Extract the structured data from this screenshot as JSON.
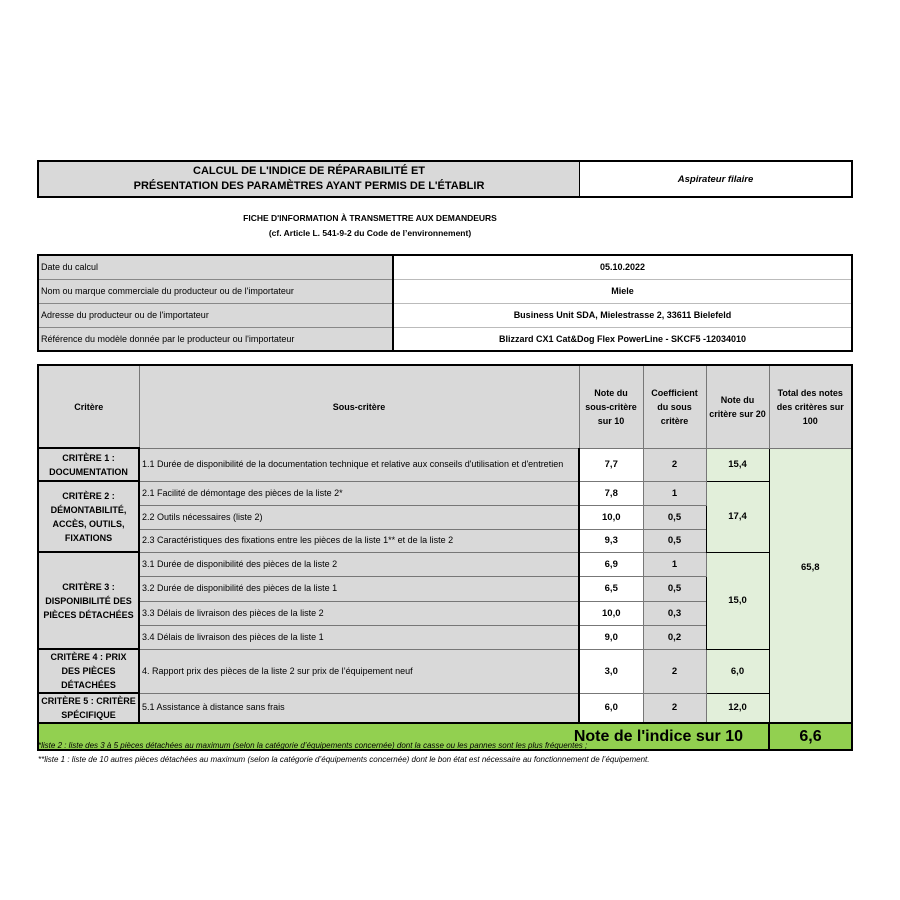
{
  "title": {
    "line1": "CALCUL DE L'INDICE DE RÉPARABILITÉ ET",
    "line2": "PRÉSENTATION DES PARAMÈTRES AYANT PERMIS DE L'ÉTABLIR",
    "category": "Aspirateur filaire"
  },
  "subtitle": {
    "line1": "FICHE D'INFORMATION À TRANSMETTRE AUX DEMANDEURS",
    "line2": "(cf. Article L. 541-9-2 du Code de l’environnement)"
  },
  "info": [
    {
      "label": "Date du calcul",
      "value": "05.10.2022"
    },
    {
      "label": "Nom ou marque commerciale du producteur ou de l'importateur",
      "value": "Miele"
    },
    {
      "label": "Adresse du producteur ou de l'importateur",
      "value": "Business Unit SDA, Mielestrasse 2, 33611 Bielefeld"
    },
    {
      "label": "Référence du modèle donnée par le producteur ou l'importateur",
      "value": "Blizzard CX1 Cat&Dog Flex PowerLine - SKCF5 -12034010"
    }
  ],
  "headers": {
    "critere": "Critère",
    "sous_critere": "Sous-critère",
    "note_sous": "Note du sous-critère sur 10",
    "coef": "Coefficient du sous critère",
    "note_crit": "Note du critère sur 20",
    "total": "Total des notes des critères sur 100"
  },
  "criteria": [
    {
      "name": "CRITÈRE 1 : DOCUMENTATION",
      "score": "15,4",
      "subs": [
        {
          "label": "1.1 Durée de disponibilité de la documentation technique et relative aux conseils d'utilisation et d'entretien",
          "note": "7,7",
          "coef": "2"
        }
      ]
    },
    {
      "name": "CRITÈRE 2 : DÉMONTABILITÉ, ACCÈS, OUTILS, FIXATIONS",
      "score": "17,4",
      "subs": [
        {
          "label": "2.1 Facilité de démontage des pièces de la liste 2*",
          "note": "7,8",
          "coef": "1"
        },
        {
          "label": "2.2 Outils nécessaires (liste 2)",
          "note": "10,0",
          "coef": "0,5"
        },
        {
          "label": "2.3 Caractéristiques des fixations entre les pièces de la liste 1** et de la liste 2",
          "note": "9,3",
          "coef": "0,5"
        }
      ]
    },
    {
      "name": "CRITÈRE 3 : DISPONIBILITÉ DES PIÈCES DÉTACHÉES",
      "score": "15,0",
      "subs": [
        {
          "label": "3.1 Durée de disponibilité des pièces de la liste 2",
          "note": "6,9",
          "coef": "1"
        },
        {
          "label": "3.2 Durée de disponibilité des pièces de la liste 1",
          "note": "6,5",
          "coef": "0,5"
        },
        {
          "label": "3.3 Délais de livraison des pièces de la liste 2",
          "note": "10,0",
          "coef": "0,3"
        },
        {
          "label": "3.4 Délais de livraison des pièces de la liste 1",
          "note": "9,0",
          "coef": "0,2"
        }
      ]
    },
    {
      "name": "CRITÈRE 4 : PRIX DES PIÈCES DÉTACHÉES",
      "score": "6,0",
      "subs": [
        {
          "label": "4. Rapport prix des pièces de la liste 2 sur prix de l’équipement neuf",
          "note": "3,0",
          "coef": "2"
        }
      ]
    },
    {
      "name": "CRITÈRE 5 : CRITÈRE SPÉCIFIQUE",
      "score": "12,0",
      "subs": [
        {
          "label": "5.1 Assistance à distance sans frais",
          "note": "6,0",
          "coef": "2"
        }
      ]
    }
  ],
  "total_sum": "65,8",
  "index": {
    "label": "Note de l'indice sur 10",
    "value": "6,6"
  },
  "footnotes": [
    "*liste 2 : liste des 3 à 5 pièces détachées au maximum (selon la catégorie d’équipements concernée) dont la casse ou les pannes sont les plus fréquentes ;",
    "**liste 1 : liste de 10 autres pièces détachées au maximum (selon la catégorie d’équipements concernée) dont le bon état est nécessaire au fonctionnement de l’équipement."
  ],
  "colors": {
    "header_gray": "#d9d9d9",
    "score_green": "#e2efda",
    "index_green": "#92d050"
  }
}
